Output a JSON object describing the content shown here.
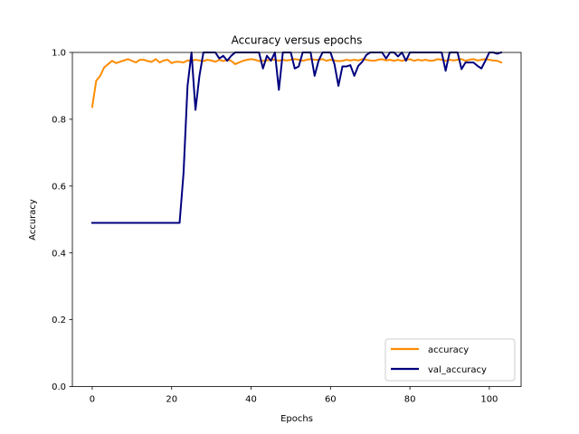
{
  "chart_data": {
    "type": "line",
    "title": "Accuracy versus epochs",
    "xlabel": "Epochs",
    "ylabel": "Accuracy",
    "xlim": [
      -5,
      108
    ],
    "ylim": [
      0.0,
      1.0
    ],
    "xticks": [
      0,
      20,
      40,
      60,
      80,
      100
    ],
    "yticks": [
      0.0,
      0.2,
      0.4,
      0.6,
      0.8,
      1.0
    ],
    "grid": false,
    "legend_position": "bottom-right",
    "series": [
      {
        "name": "accuracy",
        "color": "#ff8c00",
        "values": [
          0.837,
          0.915,
          0.93,
          0.955,
          0.965,
          0.975,
          0.968,
          0.972,
          0.976,
          0.98,
          0.975,
          0.97,
          0.978,
          0.978,
          0.974,
          0.972,
          0.98,
          0.97,
          0.976,
          0.978,
          0.968,
          0.972,
          0.972,
          0.97,
          0.976,
          0.975,
          0.978,
          0.976,
          0.974,
          0.978,
          0.976,
          0.972,
          0.978,
          0.974,
          0.978,
          0.975,
          0.965,
          0.97,
          0.975,
          0.978,
          0.98,
          0.978,
          0.974,
          0.975,
          0.976,
          0.978,
          0.978,
          0.975,
          0.978,
          0.976,
          0.978,
          0.98,
          0.978,
          0.975,
          0.978,
          0.98,
          0.978,
          0.978,
          0.98,
          0.975,
          0.978,
          0.976,
          0.974,
          0.975,
          0.978,
          0.976,
          0.978,
          0.976,
          0.98,
          0.978,
          0.976,
          0.975,
          0.978,
          0.98,
          0.976,
          0.978,
          0.975,
          0.978,
          0.975,
          0.978,
          0.98,
          0.975,
          0.978,
          0.976,
          0.978,
          0.975,
          0.976,
          0.98,
          0.978,
          0.975,
          0.978,
          0.976,
          0.978,
          0.98,
          0.975,
          0.978,
          0.98,
          0.976,
          0.978,
          0.98,
          0.978,
          0.976,
          0.975,
          0.97
        ]
      },
      {
        "name": "val_accuracy",
        "color": "#00007f",
        "values": [
          0.49,
          0.49,
          0.49,
          0.49,
          0.49,
          0.49,
          0.49,
          0.49,
          0.49,
          0.49,
          0.49,
          0.49,
          0.49,
          0.49,
          0.49,
          0.49,
          0.49,
          0.49,
          0.49,
          0.49,
          0.49,
          0.49,
          0.49,
          0.64,
          0.9,
          1.0,
          0.828,
          0.93,
          1.0,
          1.0,
          1.0,
          1.0,
          0.982,
          0.99,
          0.975,
          0.99,
          1.0,
          1.0,
          1.0,
          1.0,
          1.0,
          1.0,
          1.0,
          0.952,
          0.99,
          0.975,
          1.0,
          0.888,
          1.0,
          1.0,
          1.0,
          0.952,
          0.958,
          1.0,
          1.0,
          1.0,
          0.93,
          0.975,
          1.0,
          1.0,
          1.0,
          0.965,
          0.9,
          0.958,
          0.958,
          0.962,
          0.93,
          0.96,
          0.972,
          0.992,
          1.0,
          1.0,
          1.0,
          1.0,
          0.982,
          1.0,
          1.0,
          0.988,
          1.0,
          0.975,
          1.0,
          1.0,
          1.0,
          1.0,
          1.0,
          1.0,
          1.0,
          1.0,
          1.0,
          0.945,
          1.0,
          1.0,
          1.0,
          0.95,
          0.97,
          0.97,
          0.97,
          0.96,
          0.952,
          0.975,
          1.0,
          1.0,
          0.996,
          1.0
        ]
      }
    ]
  }
}
